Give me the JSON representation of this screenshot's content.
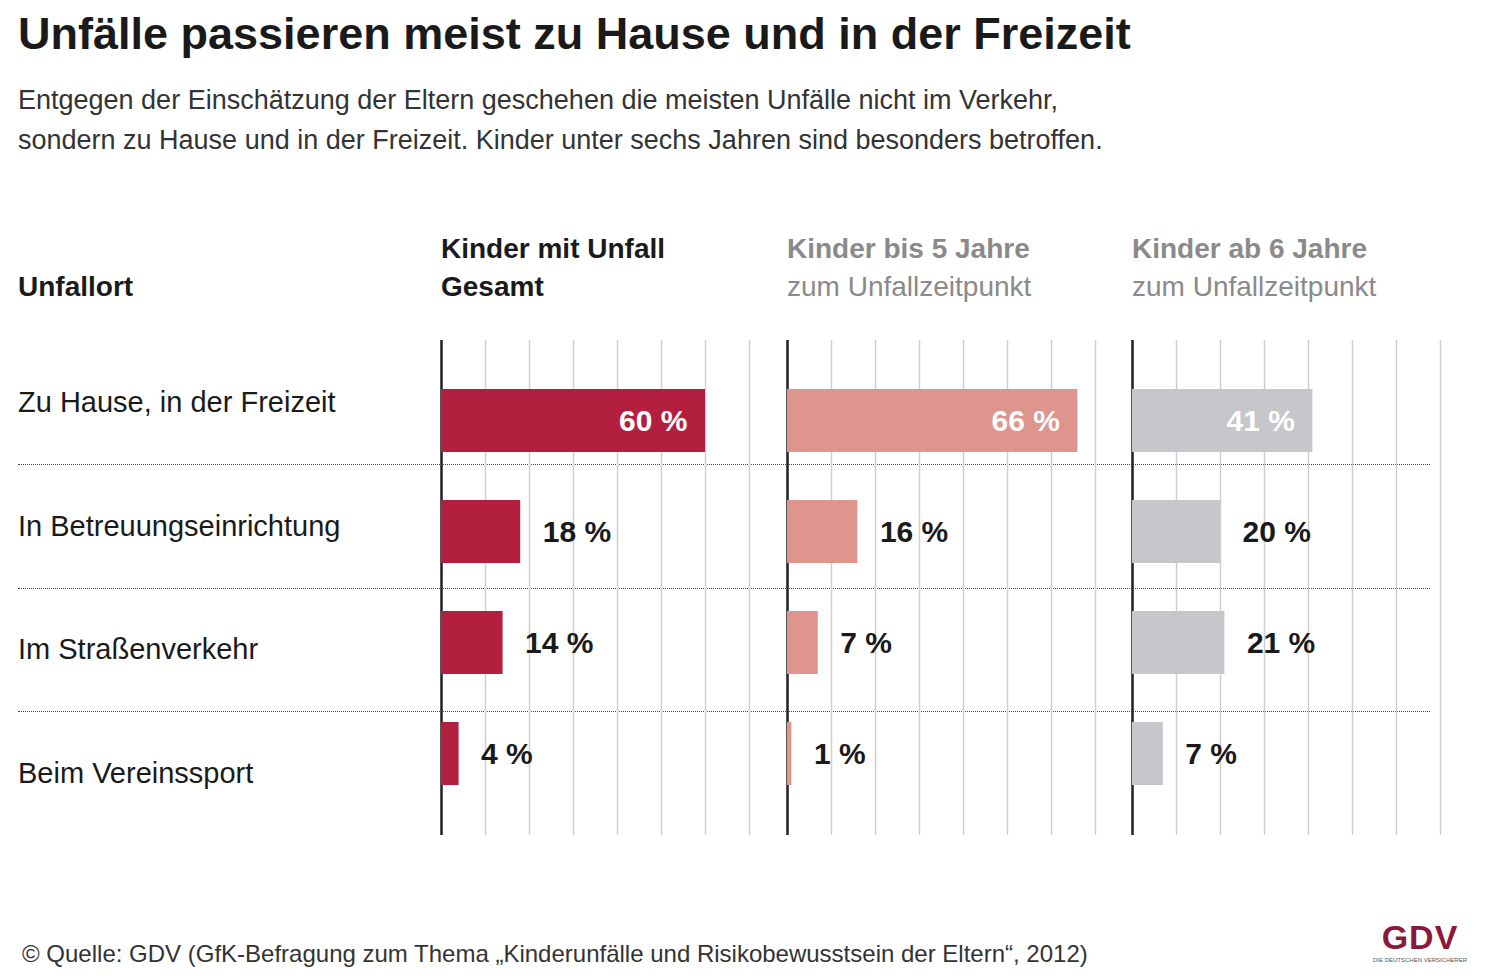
{
  "title": "Unfälle passieren meist zu Hause und in der Freizeit",
  "subtitle": "Entgegen der Einschätzung der Eltern geschehen die meisten Unfälle nicht im Verkehr,\nsondern zu Hause und in der Freizeit. Kinder unter sechs Jahren sind besonders betroffen.",
  "category_label": "Unfallort",
  "source": "© Quelle: GDV (GfK-Befragung zum Thema „Kinderunfälle und Risikobewusstsein der Eltern“, 2012)",
  "logo": {
    "text": "GDV",
    "subtext": "DIE DEUTSCHEN VERSICHERER"
  },
  "chart_data": [
    {
      "type": "bar",
      "orientation": "horizontal",
      "title": "Kinder mit Unfall\nGesamt",
      "categories": [
        "Zu Hause, in der Freizeit",
        "In Betreuungseinrichtung",
        "Im Straßenverkehr",
        "Beim Vereinssport"
      ],
      "values": [
        60,
        18,
        14,
        4
      ],
      "value_labels": [
        "60 %",
        "18 %",
        "14 %",
        "4 %"
      ],
      "color": "#b3203f",
      "xlim": [
        0,
        70
      ],
      "xticks": [
        0,
        10,
        20,
        30,
        40,
        50,
        60,
        70
      ],
      "grid": true,
      "data_labels": true,
      "tick_labels": false
    },
    {
      "type": "bar",
      "orientation": "horizontal",
      "title": "Kinder bis 5 Jahre",
      "subtitle": "zum Unfallzeitpunkt",
      "categories": [
        "Zu Hause, in der Freizeit",
        "In Betreuungseinrichtung",
        "Im Straßenverkehr",
        "Beim Vereinssport"
      ],
      "values": [
        66,
        16,
        7,
        1
      ],
      "value_labels": [
        "66 %",
        "16 %",
        "7 %",
        "1 %"
      ],
      "color": "#dd958e",
      "xlim": [
        0,
        70
      ],
      "xticks": [
        0,
        10,
        20,
        30,
        40,
        50,
        60,
        70
      ],
      "grid": true,
      "data_labels": true,
      "tick_labels": false
    },
    {
      "type": "bar",
      "orientation": "horizontal",
      "title": "Kinder ab 6 Jahre",
      "subtitle": "zum Unfallzeitpunkt",
      "categories": [
        "Zu Hause, in der Freizeit",
        "In Betreuungseinrichtung",
        "Im Straßenverkehr",
        "Beim Vereinssport"
      ],
      "values": [
        41,
        20,
        21,
        7
      ],
      "value_labels": [
        "41 %",
        "20 %",
        "21 %",
        "7 %"
      ],
      "color": "#c5c7ca",
      "xlim": [
        0,
        70
      ],
      "xticks": [
        0,
        10,
        20,
        30,
        40,
        50,
        60,
        70
      ],
      "grid": true,
      "data_labels": true,
      "tick_labels": false
    }
  ]
}
